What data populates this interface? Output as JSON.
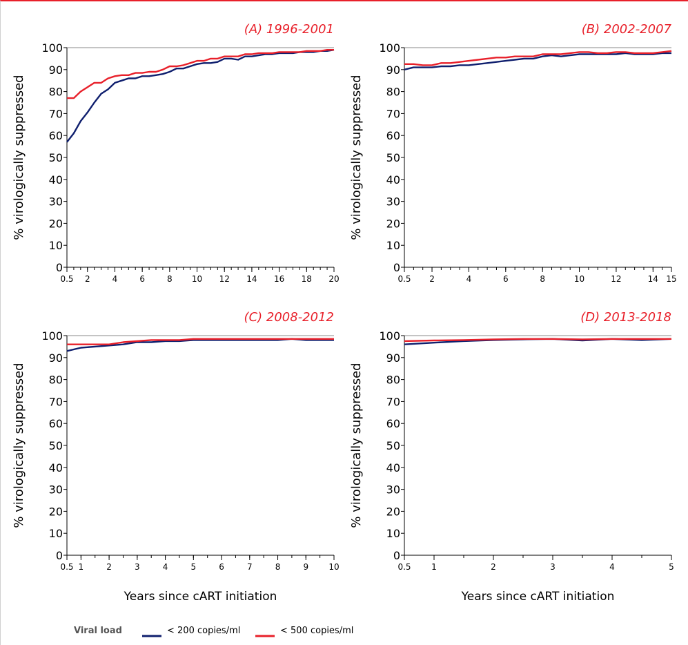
{
  "colors": {
    "series_200": "#0f1f6e",
    "series_500": "#e8202a",
    "title": "#e8202a"
  },
  "legend": {
    "title": "Viral load",
    "items": [
      {
        "label": "< 200 copies/ml",
        "color": "#0f1f6e"
      },
      {
        "label": "< 500 copies/ml",
        "color": "#e8202a"
      }
    ]
  },
  "chart_data": [
    {
      "type": "line",
      "title": "(A) 1996-2001",
      "ylabel": "% virologically suppressed",
      "xlabel": "",
      "xlim": [
        0.5,
        20
      ],
      "ylim": [
        0,
        100
      ],
      "yticks": [
        0,
        10,
        20,
        30,
        40,
        50,
        60,
        70,
        80,
        90,
        100
      ],
      "xticks": [
        0.5,
        2,
        4,
        6,
        8,
        10,
        12,
        14,
        16,
        18,
        20
      ],
      "xtick_labels": [
        "0.5",
        "2",
        "4",
        "6",
        "8",
        "10",
        "12",
        "14",
        "16",
        "18",
        "20"
      ],
      "series": [
        {
          "name": "< 200 copies/ml",
          "x": [
            0.5,
            1,
            1.5,
            2,
            2.5,
            3,
            3.5,
            4,
            4.5,
            5,
            5.5,
            6,
            6.5,
            7,
            7.5,
            8,
            8.5,
            9,
            9.5,
            10,
            10.5,
            11,
            11.5,
            12,
            12.5,
            13,
            13.5,
            14,
            14.5,
            15,
            15.5,
            16,
            16.5,
            17,
            17.5,
            18,
            18.5,
            19,
            19.5,
            20
          ],
          "y": [
            57,
            61,
            66.5,
            70.5,
            75,
            79,
            81,
            84,
            85,
            86,
            86,
            87,
            87,
            87.5,
            88,
            89,
            90.5,
            90.5,
            91.5,
            92.5,
            93,
            93,
            93.5,
            95,
            95,
            94.5,
            96,
            96,
            96.5,
            97,
            97,
            97.5,
            97.5,
            97.5,
            98,
            98,
            98,
            98.5,
            98.5,
            99
          ]
        },
        {
          "name": "< 500 copies/ml",
          "x": [
            0.5,
            1,
            1.5,
            2,
            2.5,
            3,
            3.5,
            4,
            4.5,
            5,
            5.5,
            6,
            6.5,
            7,
            7.5,
            8,
            8.5,
            9,
            9.5,
            10,
            10.5,
            11,
            11.5,
            12,
            12.5,
            13,
            13.5,
            14,
            14.5,
            15,
            15.5,
            16,
            16.5,
            17,
            17.5,
            18,
            18.5,
            19,
            19.5,
            20
          ],
          "y": [
            77,
            77,
            80,
            82,
            84,
            84,
            86,
            87,
            87.5,
            87.5,
            88.5,
            88.5,
            89,
            89,
            90,
            91.5,
            91.5,
            92,
            93,
            94,
            94,
            95,
            95,
            96,
            96,
            96,
            97,
            97,
            97.5,
            97.5,
            97.5,
            98,
            98,
            98,
            98,
            98.5,
            98.5,
            98.5,
            99,
            99
          ]
        }
      ]
    },
    {
      "type": "line",
      "title": "(B) 2002-2007",
      "ylabel": "% virologically suppressed",
      "xlabel": "",
      "xlim": [
        0.5,
        15
      ],
      "ylim": [
        0,
        100
      ],
      "yticks": [
        0,
        10,
        20,
        30,
        40,
        50,
        60,
        70,
        80,
        90,
        100
      ],
      "xticks": [
        0.5,
        2,
        4,
        6,
        8,
        10,
        12,
        14,
        15
      ],
      "xtick_labels": [
        "0.5",
        "2",
        "4",
        "6",
        "8",
        "10",
        "12",
        "14",
        "15"
      ],
      "series": [
        {
          "name": "< 200 copies/ml",
          "x": [
            0.5,
            1,
            1.5,
            2,
            2.5,
            3,
            3.5,
            4,
            4.5,
            5,
            5.5,
            6,
            6.5,
            7,
            7.5,
            8,
            8.5,
            9,
            9.5,
            10,
            10.5,
            11,
            11.5,
            12,
            12.5,
            13,
            13.5,
            14,
            14.5,
            15
          ],
          "y": [
            90,
            91,
            91,
            91,
            91.5,
            91.5,
            92,
            92,
            92.5,
            93,
            93.5,
            94,
            94.5,
            95,
            95,
            96,
            96.5,
            96,
            96.5,
            97,
            97,
            97,
            97,
            97,
            97.5,
            97,
            97,
            97,
            97.5,
            97.5
          ]
        },
        {
          "name": "< 500 copies/ml",
          "x": [
            0.5,
            1,
            1.5,
            2,
            2.5,
            3,
            3.5,
            4,
            4.5,
            5,
            5.5,
            6,
            6.5,
            7,
            7.5,
            8,
            8.5,
            9,
            9.5,
            10,
            10.5,
            11,
            11.5,
            12,
            12.5,
            13,
            13.5,
            14,
            14.5,
            15
          ],
          "y": [
            92.5,
            92.5,
            92,
            92,
            93,
            93,
            93.5,
            94,
            94.5,
            95,
            95.5,
            95.5,
            96,
            96,
            96,
            97,
            97,
            97,
            97.5,
            98,
            98,
            97.5,
            97.5,
            98,
            98,
            97.5,
            97.5,
            97.5,
            98,
            98.5
          ]
        }
      ]
    },
    {
      "type": "line",
      "title": "(C) 2008-2012",
      "ylabel": "% virologically suppressed",
      "xlabel": "Years since cART initiation",
      "xlim": [
        0.5,
        10
      ],
      "ylim": [
        0,
        100
      ],
      "yticks": [
        0,
        10,
        20,
        30,
        40,
        50,
        60,
        70,
        80,
        90,
        100
      ],
      "xticks": [
        0.5,
        1,
        2,
        3,
        4,
        5,
        6,
        7,
        8,
        9,
        10
      ],
      "xtick_labels": [
        "0.5",
        "1",
        "2",
        "3",
        "4",
        "5",
        "6",
        "7",
        "8",
        "9",
        "10"
      ],
      "series": [
        {
          "name": "< 200 copies/ml",
          "x": [
            0.5,
            1,
            1.5,
            2,
            2.5,
            3,
            3.5,
            4,
            4.5,
            5,
            5.5,
            6,
            6.5,
            7,
            7.5,
            8,
            8.5,
            9,
            9.5,
            10
          ],
          "y": [
            93,
            94.5,
            95,
            95.5,
            96,
            97,
            97,
            97.5,
            97.5,
            98,
            98,
            98,
            98,
            98,
            98,
            98,
            98.5,
            98,
            98,
            98
          ]
        },
        {
          "name": "< 500 copies/ml",
          "x": [
            0.5,
            1,
            1.5,
            2,
            2.5,
            3,
            3.5,
            4,
            4.5,
            5,
            5.5,
            6,
            6.5,
            7,
            7.5,
            8,
            8.5,
            9,
            9.5,
            10
          ],
          "y": [
            96,
            96,
            96,
            96,
            97,
            97.5,
            98,
            98,
            98,
            98.5,
            98.5,
            98.5,
            98.5,
            98.5,
            98.5,
            98.5,
            98.5,
            98.5,
            98.5,
            98.5
          ]
        }
      ]
    },
    {
      "type": "line",
      "title": "(D) 2013-2018",
      "ylabel": "% virologically suppressed",
      "xlabel": "Years since cART initiation",
      "xlim": [
        0.5,
        5
      ],
      "ylim": [
        0,
        100
      ],
      "yticks": [
        0,
        10,
        20,
        30,
        40,
        50,
        60,
        70,
        80,
        90,
        100
      ],
      "xticks": [
        0.5,
        1,
        2,
        3,
        4,
        5
      ],
      "xtick_labels": [
        "0.5",
        "1",
        "2",
        "3",
        "4",
        "5"
      ],
      "series": [
        {
          "name": "< 200 copies/ml",
          "x": [
            0.5,
            1,
            1.5,
            2,
            2.5,
            3,
            3.5,
            4,
            4.5,
            5
          ],
          "y": [
            96,
            96.8,
            97.5,
            98,
            98.3,
            98.5,
            97.8,
            98.5,
            98,
            98.5
          ]
        },
        {
          "name": "< 500 copies/ml",
          "x": [
            0.5,
            1,
            1.5,
            2,
            2.5,
            3,
            3.5,
            4,
            4.5,
            5
          ],
          "y": [
            97.5,
            97.8,
            98,
            98.3,
            98.5,
            98.5,
            98.3,
            98.5,
            98.5,
            98.5
          ]
        }
      ]
    }
  ]
}
